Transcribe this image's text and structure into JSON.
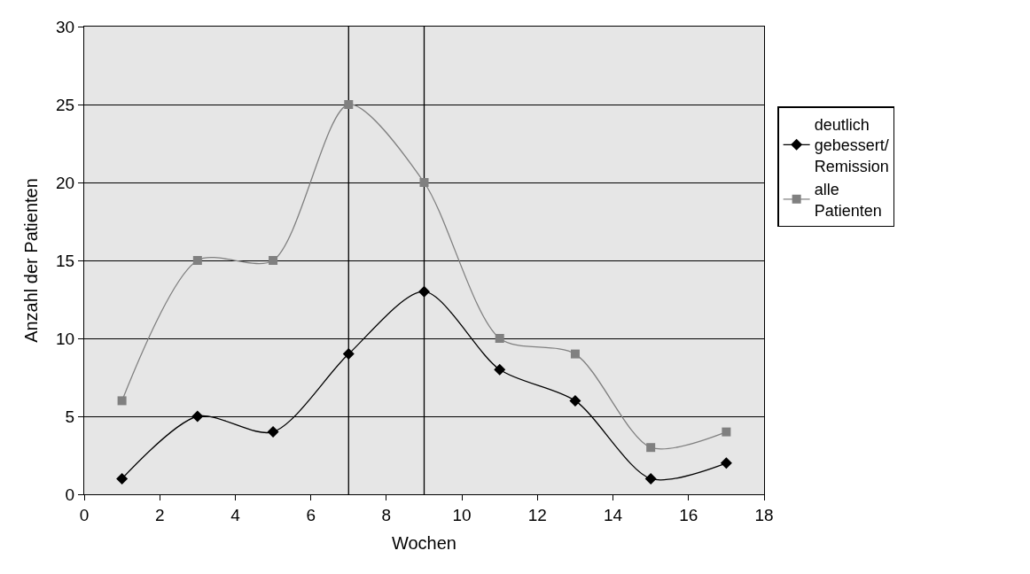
{
  "chart_data": {
    "type": "line",
    "xlabel": "Wochen",
    "ylabel": "Anzahl der Patienten",
    "x": [
      1,
      3,
      5,
      7,
      9,
      11,
      13,
      15,
      17
    ],
    "series": [
      {
        "name": "deutlich gebessert/ Remission",
        "color": "#000000",
        "marker": "diamond",
        "values": [
          1,
          5,
          4,
          9,
          13,
          8,
          6,
          1,
          2
        ]
      },
      {
        "name": "alle Patienten",
        "color": "#808080",
        "marker": "square",
        "values": [
          6,
          15,
          15,
          25,
          20,
          10,
          9,
          3,
          4
        ]
      }
    ],
    "xlim": [
      0,
      18
    ],
    "xticks": [
      0,
      2,
      4,
      6,
      8,
      10,
      12,
      14,
      16,
      18
    ],
    "ylim": [
      0,
      30
    ],
    "yticks": [
      0,
      5,
      10,
      15,
      20,
      25,
      30
    ],
    "grid": "y",
    "legend": "right",
    "ref_lines": [
      {
        "axis": "x",
        "value": 7,
        "color": "#000000"
      },
      {
        "axis": "x",
        "value": 9,
        "color": "#000000"
      }
    ]
  }
}
